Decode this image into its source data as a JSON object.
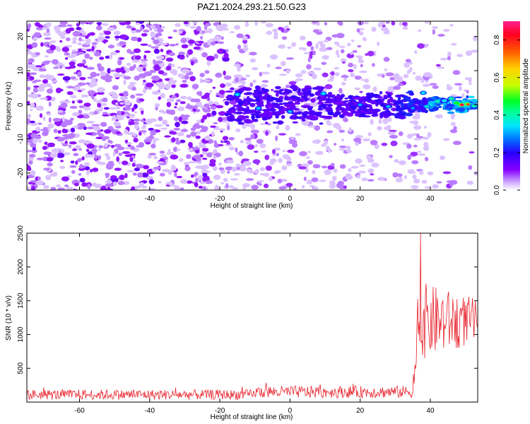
{
  "title": "PAZ1.2024.293.21.50.G23",
  "colors": {
    "signal": "#e8202a",
    "frame": "#000000",
    "spectrum_low": "#7a00ff",
    "colorscale": [
      "#ffffff",
      "#c9a3ff",
      "#8800ff",
      "#2a00ff",
      "#0070ff",
      "#00e5ff",
      "#00ff44",
      "#c8ff00",
      "#ffd000",
      "#ff5a00",
      "#ff0020",
      "#ff2090"
    ]
  },
  "chart_data": [
    {
      "type": "heatmap",
      "title": "PAZ1.2024.293.21.50.G23",
      "xlabel": "Height of straight line (km)",
      "ylabel": "Frequency (Hz)",
      "xlim": [
        -75,
        53.5
      ],
      "ylim": [
        -25,
        24.5
      ],
      "xticks": [
        -60,
        -40,
        -20,
        0,
        20,
        40
      ],
      "yticks": [
        -20,
        -10,
        0,
        10,
        20
      ],
      "colorbar": {
        "label": "Normalized spectral amplitude",
        "range": [
          0,
          0.9
        ],
        "ticks": [
          "0.0",
          "0.2",
          "0.4",
          "0.6",
          "0.8"
        ]
      },
      "signal_band": {
        "x_start": -18,
        "center_frequency": 0,
        "peak_x": 49,
        "peak_amplitude": 0.9
      }
    },
    {
      "type": "line",
      "xlabel": "Height of straight line (km)",
      "ylabel": "SNR (10 * v/v)",
      "xlim": [
        -75,
        53.5
      ],
      "ylim": [
        0,
        2500
      ],
      "xticks": [
        -60,
        -40,
        -20,
        0,
        20,
        40
      ],
      "yticks": [
        500,
        1000,
        1500,
        2000,
        2500
      ],
      "x_step": 0.2,
      "baseline_mean": 120,
      "segments": [
        {
          "x_start": -75,
          "x_end": -10,
          "mean": 110,
          "spread": 150
        },
        {
          "x_start": -10,
          "x_end": 36,
          "mean": 150,
          "spread": 180
        },
        {
          "x_start": 36,
          "x_end": 53.5,
          "mean": 1200,
          "spread": 1200
        }
      ],
      "peak": {
        "x": 37.2,
        "y": 2500
      }
    }
  ]
}
